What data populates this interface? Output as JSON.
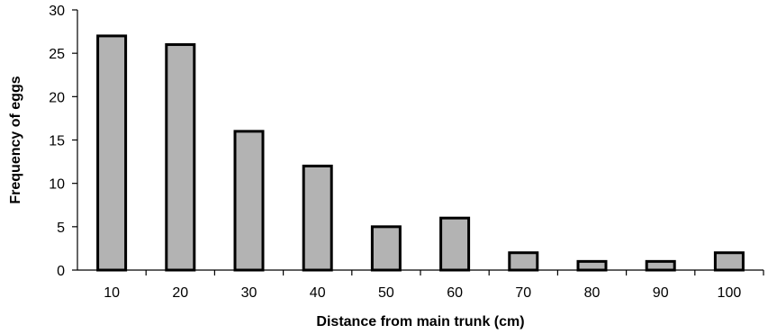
{
  "chart_data": {
    "type": "bar",
    "title": "",
    "xlabel": "Distance from main trunk (cm)",
    "ylabel": "Frequency of eggs",
    "categories": [
      "10",
      "20",
      "30",
      "40",
      "50",
      "60",
      "70",
      "80",
      "90",
      "100"
    ],
    "values": [
      27,
      26,
      16,
      12,
      5,
      6,
      2,
      1,
      1,
      2
    ],
    "ylim": [
      0,
      30
    ],
    "yticks": [
      "0",
      "5",
      "10",
      "15",
      "20",
      "25",
      "30"
    ],
    "grid": false,
    "legend": false,
    "bar_color": "#b3b3b3",
    "bar_edge_color": "#000000"
  }
}
